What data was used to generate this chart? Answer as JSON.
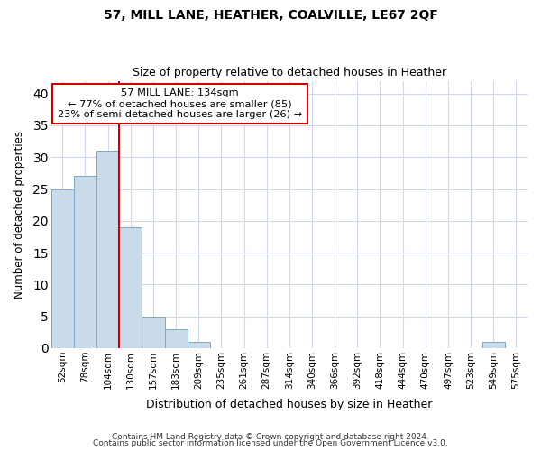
{
  "title1": "57, MILL LANE, HEATHER, COALVILLE, LE67 2QF",
  "title2": "Size of property relative to detached houses in Heather",
  "xlabel": "Distribution of detached houses by size in Heather",
  "ylabel": "Number of detached properties",
  "categories": [
    "52sqm",
    "78sqm",
    "104sqm",
    "130sqm",
    "157sqm",
    "183sqm",
    "209sqm",
    "235sqm",
    "261sqm",
    "287sqm",
    "314sqm",
    "340sqm",
    "366sqm",
    "392sqm",
    "418sqm",
    "444sqm",
    "470sqm",
    "497sqm",
    "523sqm",
    "549sqm",
    "575sqm"
  ],
  "values": [
    25,
    27,
    31,
    19,
    5,
    3,
    1,
    0,
    0,
    0,
    0,
    0,
    0,
    0,
    0,
    0,
    0,
    0,
    0,
    1,
    0
  ],
  "bar_color": "#c9daea",
  "bar_edge_color": "#7aaac8",
  "red_line_index": 3,
  "annotation_title": "57 MILL LANE: 134sqm",
  "annotation_line1": "← 77% of detached houses are smaller (85)",
  "annotation_line2": "23% of semi-detached houses are larger (26) →",
  "annotation_box_color": "#ffffff",
  "annotation_box_edge": "#cc0000",
  "red_line_color": "#cc0000",
  "ylim": [
    0,
    42
  ],
  "yticks": [
    0,
    5,
    10,
    15,
    20,
    25,
    30,
    35,
    40
  ],
  "grid_color": "#d0daec",
  "footer1": "Contains HM Land Registry data © Crown copyright and database right 2024.",
  "footer2": "Contains public sector information licensed under the Open Government Licence v3.0.",
  "bg_color": "#ffffff"
}
